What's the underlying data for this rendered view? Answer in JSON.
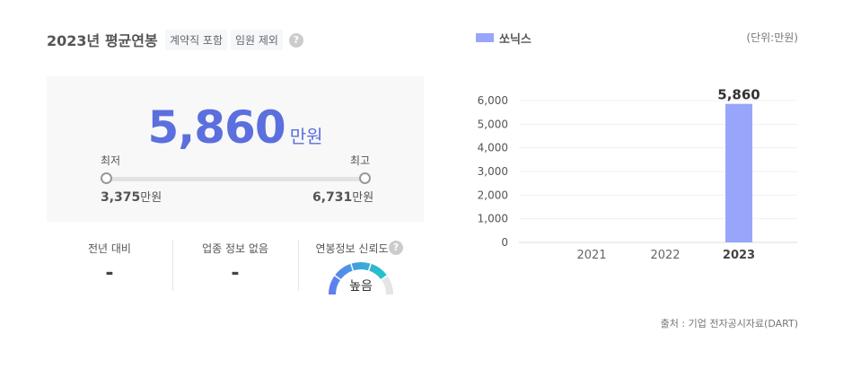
{
  "header": {
    "title": "2023년 평균연봉",
    "tags": [
      "계약직 포함",
      "임원 제외"
    ],
    "help": "?"
  },
  "summary": {
    "value": "5,860",
    "unit": "만원",
    "min_label": "최저",
    "max_label": "최고",
    "min_value": "3,375",
    "max_value": "6,731",
    "min_unit": "만원",
    "max_unit": "만원"
  },
  "stats": [
    {
      "label": "전년 대비",
      "value": "-"
    },
    {
      "label": "업종 정보 없음",
      "value": "-"
    },
    {
      "label": "연봉정보 신뢰도",
      "value": "높음",
      "level_segments": 4,
      "total_segments": 5
    }
  ],
  "chart_data": {
    "type": "bar",
    "legend": "쏘닉스",
    "unit_note": "(단위:만원)",
    "categories": [
      "2021",
      "2022",
      "2023"
    ],
    "values": [
      null,
      null,
      5860
    ],
    "data_labels": [
      "",
      "",
      "5,860"
    ],
    "ylim": [
      0,
      6000
    ],
    "yticks": [
      "0",
      "1,000",
      "2,000",
      "3,000",
      "4,000",
      "5,000",
      "6,000"
    ],
    "grid": true,
    "legend_position": "top-left",
    "color": "#97a6fb"
  },
  "source": "출처 : 기업 전자공시자료(DART)"
}
